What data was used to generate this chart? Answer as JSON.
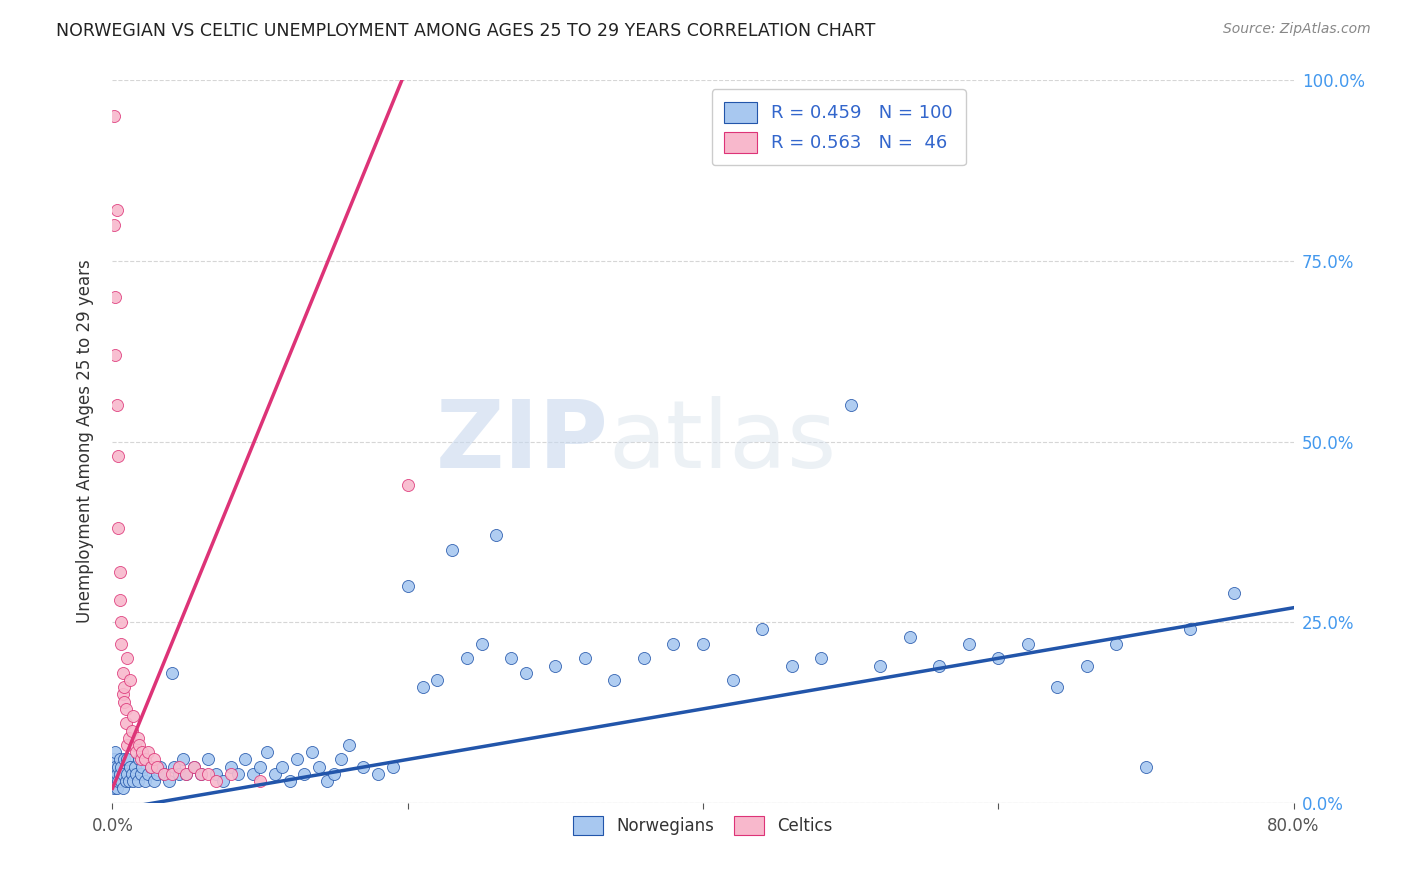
{
  "title": "NORWEGIAN VS CELTIC UNEMPLOYMENT AMONG AGES 25 TO 29 YEARS CORRELATION CHART",
  "source": "Source: ZipAtlas.com",
  "ylabel": "Unemployment Among Ages 25 to 29 years",
  "xlim": [
    0.0,
    0.8
  ],
  "ylim": [
    0.0,
    1.0
  ],
  "norwegian_color": "#a8c8f0",
  "celtic_color": "#f8b8cc",
  "norwegian_line_color": "#2255aa",
  "celtic_line_color": "#dd3377",
  "R_norwegian": 0.459,
  "N_norwegian": 100,
  "R_celtic": 0.563,
  "N_celtic": 46,
  "watermark_zip": "ZIP",
  "watermark_atlas": "atlas",
  "background_color": "#ffffff",
  "nor_line_x0": 0.0,
  "nor_line_y0": -0.01,
  "nor_line_x1": 0.8,
  "nor_line_y1": 0.27,
  "cel_line_x0": 0.0,
  "cel_line_y0": 0.02,
  "cel_line_x1": 0.2,
  "cel_line_y1": 1.02,
  "norwegians_scatter_x": [
    0.001,
    0.001,
    0.001,
    0.002,
    0.002,
    0.002,
    0.003,
    0.003,
    0.004,
    0.004,
    0.005,
    0.005,
    0.006,
    0.006,
    0.007,
    0.007,
    0.008,
    0.009,
    0.01,
    0.01,
    0.011,
    0.012,
    0.013,
    0.014,
    0.015,
    0.016,
    0.017,
    0.018,
    0.019,
    0.02,
    0.022,
    0.024,
    0.026,
    0.028,
    0.03,
    0.032,
    0.035,
    0.038,
    0.04,
    0.042,
    0.045,
    0.048,
    0.05,
    0.055,
    0.06,
    0.065,
    0.07,
    0.075,
    0.08,
    0.085,
    0.09,
    0.095,
    0.1,
    0.105,
    0.11,
    0.115,
    0.12,
    0.125,
    0.13,
    0.135,
    0.14,
    0.145,
    0.15,
    0.155,
    0.16,
    0.17,
    0.18,
    0.19,
    0.2,
    0.21,
    0.22,
    0.23,
    0.24,
    0.25,
    0.26,
    0.27,
    0.28,
    0.3,
    0.32,
    0.34,
    0.36,
    0.38,
    0.4,
    0.42,
    0.44,
    0.46,
    0.48,
    0.5,
    0.52,
    0.54,
    0.56,
    0.58,
    0.6,
    0.62,
    0.64,
    0.66,
    0.68,
    0.7,
    0.73,
    0.76
  ],
  "norwegians_scatter_y": [
    0.04,
    0.02,
    0.06,
    0.03,
    0.05,
    0.07,
    0.04,
    0.02,
    0.05,
    0.03,
    0.04,
    0.06,
    0.03,
    0.05,
    0.04,
    0.02,
    0.06,
    0.03,
    0.04,
    0.06,
    0.03,
    0.05,
    0.04,
    0.03,
    0.05,
    0.04,
    0.03,
    0.06,
    0.04,
    0.05,
    0.03,
    0.04,
    0.05,
    0.03,
    0.04,
    0.05,
    0.04,
    0.03,
    0.18,
    0.05,
    0.04,
    0.06,
    0.04,
    0.05,
    0.04,
    0.06,
    0.04,
    0.03,
    0.05,
    0.04,
    0.06,
    0.04,
    0.05,
    0.07,
    0.04,
    0.05,
    0.03,
    0.06,
    0.04,
    0.07,
    0.05,
    0.03,
    0.04,
    0.06,
    0.08,
    0.05,
    0.04,
    0.05,
    0.3,
    0.16,
    0.17,
    0.35,
    0.2,
    0.22,
    0.37,
    0.2,
    0.18,
    0.19,
    0.2,
    0.17,
    0.2,
    0.22,
    0.22,
    0.17,
    0.24,
    0.19,
    0.2,
    0.55,
    0.19,
    0.23,
    0.19,
    0.22,
    0.2,
    0.22,
    0.16,
    0.19,
    0.22,
    0.05,
    0.24,
    0.29
  ],
  "celtics_scatter_x": [
    0.001,
    0.001,
    0.002,
    0.002,
    0.003,
    0.003,
    0.004,
    0.004,
    0.005,
    0.005,
    0.006,
    0.006,
    0.007,
    0.007,
    0.008,
    0.008,
    0.009,
    0.009,
    0.01,
    0.01,
    0.011,
    0.012,
    0.013,
    0.014,
    0.015,
    0.016,
    0.017,
    0.018,
    0.019,
    0.02,
    0.022,
    0.024,
    0.026,
    0.028,
    0.03,
    0.035,
    0.04,
    0.045,
    0.05,
    0.055,
    0.06,
    0.065,
    0.07,
    0.08,
    0.1,
    0.2
  ],
  "celtics_scatter_y": [
    0.95,
    0.8,
    0.7,
    0.62,
    0.82,
    0.55,
    0.48,
    0.38,
    0.32,
    0.28,
    0.25,
    0.22,
    0.18,
    0.15,
    0.16,
    0.14,
    0.13,
    0.11,
    0.2,
    0.08,
    0.09,
    0.17,
    0.1,
    0.12,
    0.08,
    0.07,
    0.09,
    0.08,
    0.06,
    0.07,
    0.06,
    0.07,
    0.05,
    0.06,
    0.05,
    0.04,
    0.04,
    0.05,
    0.04,
    0.05,
    0.04,
    0.04,
    0.03,
    0.04,
    0.03,
    0.44
  ]
}
